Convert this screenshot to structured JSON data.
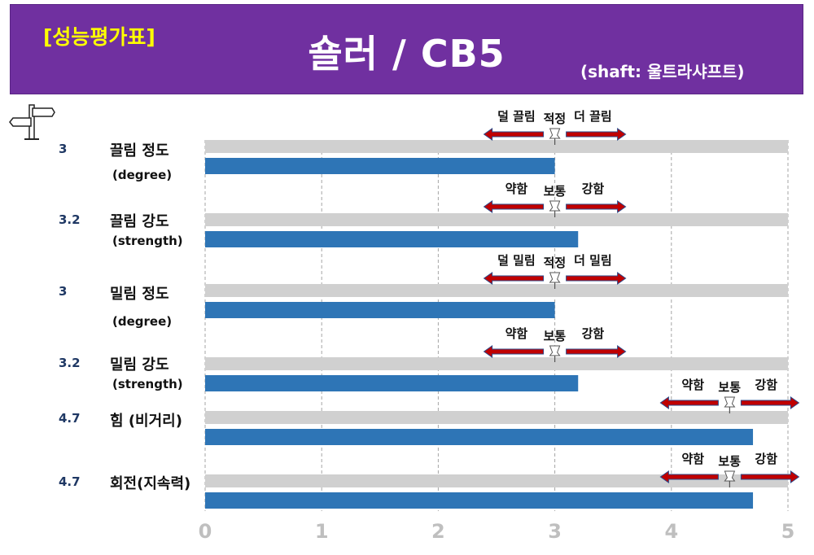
{
  "header": {
    "badge": "[성능평가표]",
    "title": "숄러 / CB5",
    "subtitle": "(shaft: 울트라샤프트)"
  },
  "colors": {
    "banner": "#7030a0",
    "badge": "#ffff00",
    "bar": "#2e75b6",
    "track": "#d0d0d0",
    "arrow": "#c00000"
  },
  "icons": {
    "signpost": "signpost-icon",
    "pin": "pushpin-icon"
  },
  "chart_data": {
    "type": "bar",
    "orientation": "horizontal",
    "xlim": [
      0,
      5
    ],
    "x_ticks": [
      "0",
      "1",
      "2",
      "3",
      "4",
      "5"
    ],
    "grid": "vertical dashed",
    "categories": [
      "끌림 정도",
      "끌림 강도",
      "밀림 정도",
      "밀림 강도",
      "힘 (비거리)",
      "회전(지속력)"
    ],
    "values": [
      3,
      3.2,
      3,
      3.2,
      4.7,
      4.7
    ],
    "rows": [
      {
        "value_text": "3",
        "label": "끌림 정도",
        "sublabel": "(degree)",
        "value": 3,
        "marker": 3,
        "left_note": "덜 끌림",
        "mid_note": "적정",
        "right_note": "더 끌림"
      },
      {
        "value_text": "3.2",
        "label": "끌림 강도",
        "sublabel": "(strength)",
        "value": 3.2,
        "marker": 3,
        "left_note": "약함",
        "mid_note": "보통",
        "right_note": "강함"
      },
      {
        "value_text": "3",
        "label": "밀림 정도",
        "sublabel": "(degree)",
        "value": 3,
        "marker": 3,
        "left_note": "덜 밀림",
        "mid_note": "적정",
        "right_note": "더 밀림"
      },
      {
        "value_text": "3.2",
        "label": "밀림 강도",
        "sublabel": "(strength)",
        "value": 3.2,
        "marker": 3,
        "left_note": "약함",
        "mid_note": "보통",
        "right_note": "강함"
      },
      {
        "value_text": "4.7",
        "label": "힘 (비거리)",
        "sublabel": "",
        "value": 4.7,
        "marker": 4.5,
        "left_note": "약함",
        "mid_note": "보통",
        "right_note": "강함"
      },
      {
        "value_text": "4.7",
        "label": "회전(지속력)",
        "sublabel": "",
        "value": 4.7,
        "marker": 4.5,
        "left_note": "약함",
        "mid_note": "보통",
        "right_note": "강함"
      }
    ]
  }
}
